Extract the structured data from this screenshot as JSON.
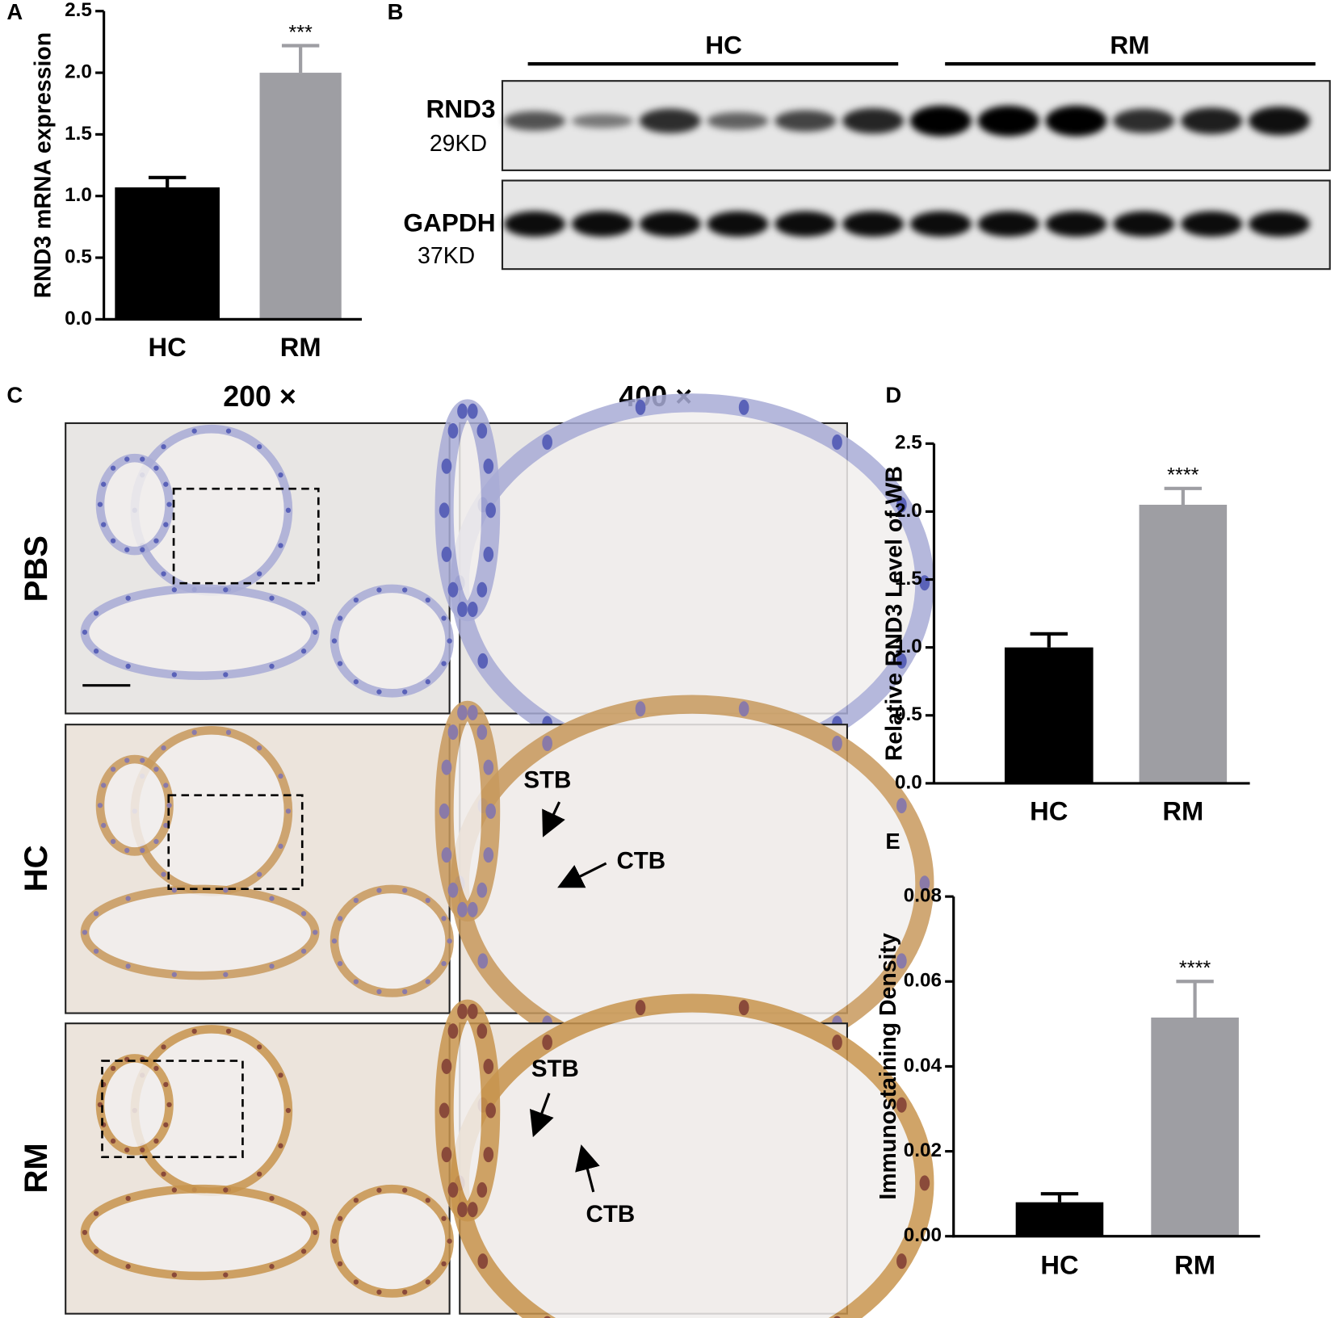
{
  "chart_data": [
    {
      "type": "bar",
      "panel": "A",
      "y_label": "RND3 mRNA expression",
      "categories": [
        "HC",
        "RM"
      ],
      "values": [
        1.07,
        2.0
      ],
      "errors": [
        0.08,
        0.22
      ],
      "colors": [
        "#000000",
        "#9e9ea3"
      ],
      "significance": "***",
      "ylim": [
        0,
        2.5
      ],
      "yticks": [
        {
          "value": 0,
          "label": "0.0"
        },
        0.5,
        {
          "value": 1,
          "label": "1.0"
        },
        1.5,
        {
          "value": 2,
          "label": "2.0"
        },
        2.5
      ]
    },
    {
      "type": "bar",
      "panel": "D",
      "y_label": "Relative RND3 Level of WB",
      "categories": [
        "HC",
        "RM"
      ],
      "values": [
        1.0,
        2.05
      ],
      "errors": [
        0.1,
        0.12
      ],
      "colors": [
        "#000000",
        "#9e9ea3"
      ],
      "significance": "****",
      "ylim": [
        0,
        2.5
      ],
      "yticks": [
        {
          "value": 0,
          "label": "0.0"
        },
        0.5,
        {
          "value": 1,
          "label": "1.0"
        },
        1.5,
        {
          "value": 2,
          "label": "2.0"
        },
        2.5
      ]
    },
    {
      "type": "bar",
      "panel": "E",
      "y_label": "Immunostaining Density",
      "categories": [
        "HC",
        "RM"
      ],
      "values": [
        0.008,
        0.0515
      ],
      "errors": [
        0.002,
        0.0085
      ],
      "colors": [
        "#000000",
        "#9e9ea3"
      ],
      "significance": "****",
      "ylim": [
        0,
        0.08
      ],
      "yticks": [
        {
          "value": 0,
          "label": "0.00"
        },
        {
          "value": 0.02,
          "label": "0.02"
        },
        {
          "value": 0.04,
          "label": "0.04"
        },
        {
          "value": 0.06,
          "label": "0.06"
        },
        {
          "value": 0.08,
          "label": "0.08"
        }
      ]
    }
  ],
  "western_blot": {
    "panel": "B",
    "groups": [
      "HC",
      "RM"
    ],
    "bands": [
      {
        "name": "RND3",
        "size": "29KD"
      },
      {
        "name": "GAPDH",
        "size": "37KD"
      }
    ]
  },
  "ihc": {
    "panel": "C",
    "magnifications": [
      "200 ×",
      "400 ×"
    ],
    "rows": [
      "PBS",
      "HC",
      "RM"
    ],
    "hc_labels": [
      "STB",
      "CTB"
    ],
    "rm_labels": [
      "STB",
      "CTB"
    ]
  }
}
